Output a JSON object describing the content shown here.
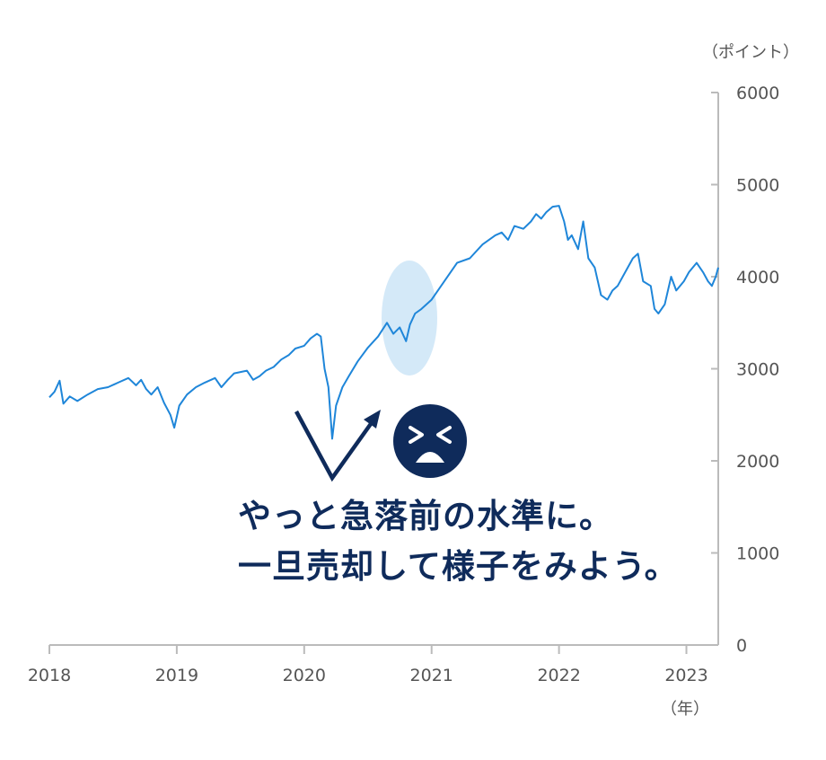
{
  "chart_data": {
    "type": "line",
    "title": "",
    "xlabel": "（年）",
    "ylabel": "（ポイント）",
    "xlim": [
      2018.0,
      2023.25
    ],
    "ylim": [
      0,
      6000
    ],
    "y_ticks": [
      "0",
      "1000",
      "2000",
      "3000",
      "4000",
      "5000",
      "6000"
    ],
    "x_ticks": [
      "2018",
      "2019",
      "2020",
      "2021",
      "2022",
      "2023"
    ],
    "y_axis_side": "right",
    "grid": false,
    "line_color": "#1f86d9",
    "series": [
      {
        "x": [
          2018.0,
          2018.04,
          2018.08,
          2018.11,
          2018.16,
          2018.22,
          2018.3,
          2018.38,
          2018.46,
          2018.54,
          2018.62,
          2018.68,
          2018.72,
          2018.76,
          2018.8,
          2018.85,
          2018.9,
          2018.95,
          2018.98,
          2019.02,
          2019.08,
          2019.15,
          2019.22,
          2019.3,
          2019.35,
          2019.4,
          2019.45,
          2019.55,
          2019.6,
          2019.65,
          2019.7,
          2019.76,
          2019.82,
          2019.88,
          2019.93,
          2020.0,
          2020.05,
          2020.1,
          2020.13,
          2020.16,
          2020.19,
          2020.22,
          2020.25,
          2020.3,
          2020.35,
          2020.42,
          2020.5,
          2020.58,
          2020.65,
          2020.7,
          2020.75,
          2020.8,
          2020.83,
          2020.87,
          2020.92,
          2021.0,
          2021.1,
          2021.2,
          2021.3,
          2021.4,
          2021.5,
          2021.55,
          2021.6,
          2021.65,
          2021.72,
          2021.78,
          2021.82,
          2021.86,
          2021.9,
          2021.95,
          2022.0,
          2022.04,
          2022.07,
          2022.1,
          2022.15,
          2022.19,
          2022.23,
          2022.28,
          2022.33,
          2022.38,
          2022.42,
          2022.46,
          2022.52,
          2022.58,
          2022.62,
          2022.66,
          2022.72,
          2022.75,
          2022.78,
          2022.83,
          2022.88,
          2022.92,
          2022.98,
          2023.02,
          2023.08,
          2023.13,
          2023.17,
          2023.2,
          2023.23,
          2023.25
        ],
        "y": [
          2690,
          2750,
          2870,
          2620,
          2700,
          2650,
          2720,
          2780,
          2800,
          2850,
          2900,
          2820,
          2880,
          2780,
          2720,
          2800,
          2630,
          2500,
          2360,
          2600,
          2720,
          2800,
          2850,
          2900,
          2800,
          2880,
          2950,
          2980,
          2880,
          2920,
          2980,
          3020,
          3100,
          3150,
          3220,
          3250,
          3330,
          3380,
          3350,
          3000,
          2800,
          2240,
          2600,
          2800,
          2920,
          3080,
          3230,
          3350,
          3500,
          3380,
          3450,
          3300,
          3480,
          3600,
          3650,
          3750,
          3950,
          4150,
          4200,
          4350,
          4450,
          4480,
          4400,
          4550,
          4520,
          4600,
          4680,
          4630,
          4700,
          4760,
          4770,
          4600,
          4400,
          4450,
          4300,
          4600,
          4200,
          4100,
          3800,
          3750,
          3850,
          3900,
          4050,
          4200,
          4250,
          3950,
          3900,
          3650,
          3600,
          3700,
          4000,
          3850,
          3950,
          4050,
          4150,
          4050,
          3950,
          3900,
          4000,
          4100
        ]
      }
    ],
    "highlight": {
      "center_x": 2020.8,
      "center_y": 3450,
      "fill": "#d4e9f8"
    },
    "annotation_lines": [
      "やっと急落前の水準に。",
      "一旦売却して様子をみよう。"
    ],
    "annotation_color": "#0f2b5b",
    "icon": "tired-face-icon"
  }
}
